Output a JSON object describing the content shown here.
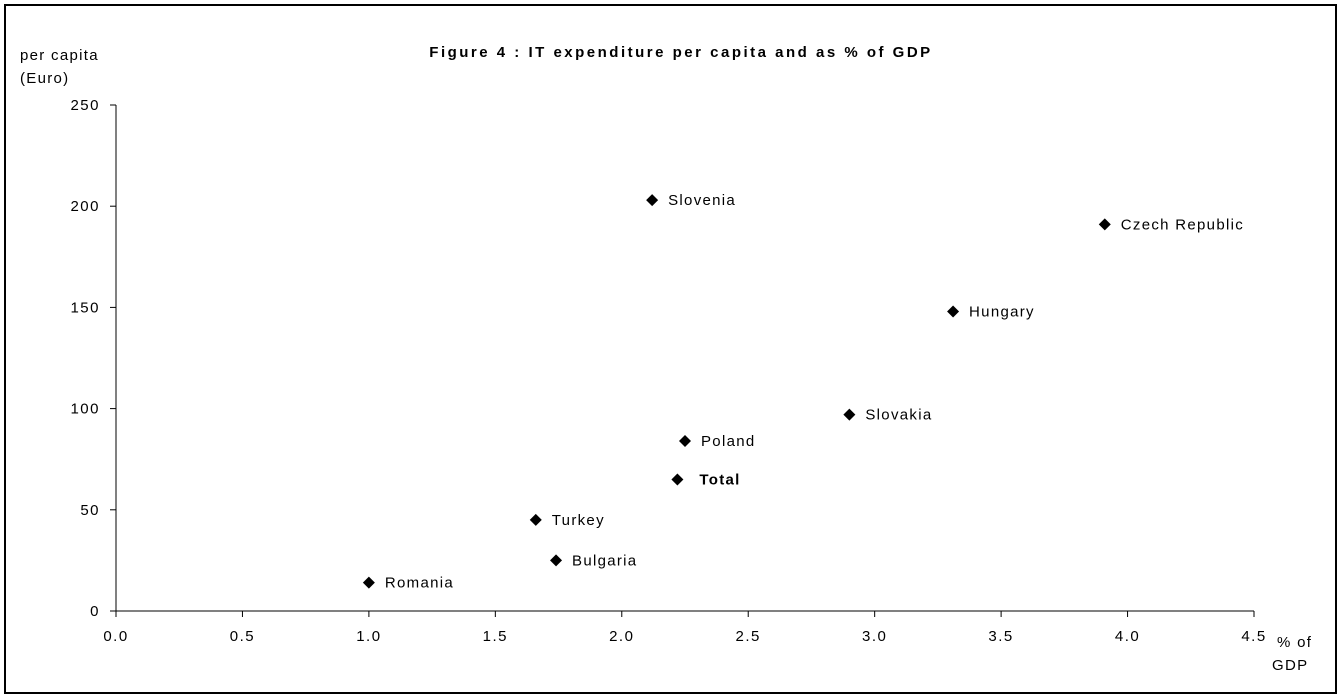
{
  "chart_data": {
    "type": "scatter",
    "title": "Figure 4 : IT expenditure per capita and as % of GDP",
    "xlabel": [
      "% of",
      "GDP"
    ],
    "ylabel": [
      "per capita",
      "(Euro)"
    ],
    "xlim": [
      0,
      4.5
    ],
    "ylim": [
      0,
      250
    ],
    "xticks": [
      "0.0",
      "0.5",
      "1.0",
      "1.5",
      "2.0",
      "2.5",
      "3.0",
      "3.5",
      "4.0",
      "4.5"
    ],
    "yticks": [
      "0",
      "50",
      "100",
      "150",
      "200",
      "250"
    ],
    "grid": false,
    "legend": "none",
    "marker_color": "#000000",
    "points": [
      {
        "label": "Slovenia",
        "x": 2.12,
        "y": 203,
        "bold": false
      },
      {
        "label": "Czech Republic",
        "x": 3.91,
        "y": 191,
        "bold": false
      },
      {
        "label": "Hungary",
        "x": 3.31,
        "y": 148,
        "bold": false
      },
      {
        "label": "Slovakia",
        "x": 2.9,
        "y": 97,
        "bold": false
      },
      {
        "label": "Poland",
        "x": 2.25,
        "y": 84,
        "bold": false
      },
      {
        "label": "Total",
        "x": 2.22,
        "y": 65,
        "bold": true
      },
      {
        "label": "Turkey",
        "x": 1.66,
        "y": 45,
        "bold": false
      },
      {
        "label": "Bulgaria",
        "x": 1.74,
        "y": 25,
        "bold": false
      },
      {
        "label": "Romania",
        "x": 1.0,
        "y": 14,
        "bold": false
      }
    ]
  }
}
